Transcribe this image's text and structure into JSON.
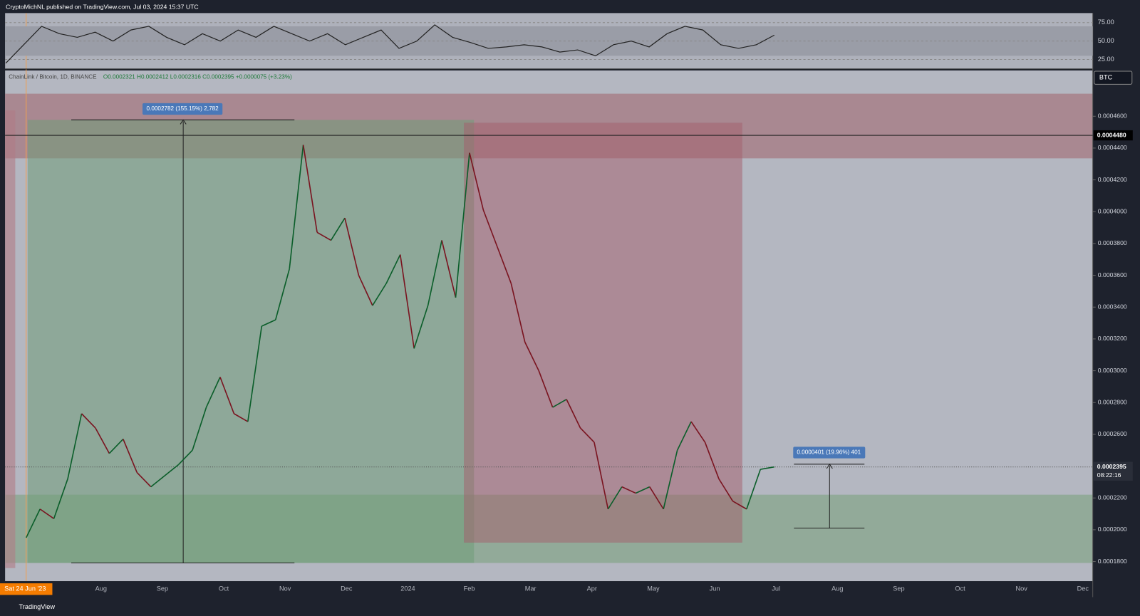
{
  "header": {
    "title": "CryptoMichNL published on TradingView.com, Jul 03, 2024 15:37 UTC"
  },
  "rsi": {
    "ylim": [
      12,
      88
    ],
    "yticks": [
      {
        "value": 75,
        "label": "75.00"
      },
      {
        "value": 50,
        "label": "50.00"
      },
      {
        "value": 25,
        "label": "25.00"
      }
    ],
    "band": [
      30,
      70
    ],
    "values": [
      20,
      45,
      70,
      60,
      55,
      62,
      50,
      65,
      70,
      55,
      45,
      60,
      50,
      65,
      55,
      70,
      60,
      50,
      60,
      45,
      55,
      65,
      40,
      50,
      72,
      55,
      48,
      40,
      42,
      45,
      42,
      35,
      38,
      30,
      45,
      50,
      42,
      60,
      70,
      65,
      45,
      40,
      45,
      58
    ]
  },
  "price": {
    "symbol": "ChainLink / Bitcoin, 1D, BINANCE",
    "ohlc": "O0.0002321 H0.0002412 L0.0002316 C0.0002395 +0.0000075 (+3.23%)",
    "currency": "BTC",
    "ylim": [
      0.0001677,
      0.0004888
    ],
    "yticks": [
      {
        "value": 0.00046,
        "label": "0.0004600"
      },
      {
        "value": 0.00044,
        "label": "0.0004400"
      },
      {
        "value": 0.00042,
        "label": "0.0004200"
      },
      {
        "value": 0.0004,
        "label": "0.0004000"
      },
      {
        "value": 0.00038,
        "label": "0.0003800"
      },
      {
        "value": 0.00036,
        "label": "0.0003600"
      },
      {
        "value": 0.00034,
        "label": "0.0003400"
      },
      {
        "value": 0.00032,
        "label": "0.0003200"
      },
      {
        "value": 0.0003,
        "label": "0.0003000"
      },
      {
        "value": 0.00028,
        "label": "0.0002800"
      },
      {
        "value": 0.00026,
        "label": "0.0002600"
      },
      {
        "value": 0.00022,
        "label": "0.0002200"
      },
      {
        "value": 0.0002,
        "label": "0.0002000"
      },
      {
        "value": 0.00018,
        "label": "0.0001800"
      }
    ],
    "level": {
      "value": 0.000448,
      "label": "0.0004480"
    },
    "last": {
      "value": 0.0002395,
      "label": "0.0002395"
    },
    "countdown": "08:22:16",
    "closes": [
      0.000195,
      0.000213,
      0.000207,
      0.000232,
      0.000273,
      0.000264,
      0.000248,
      0.000257,
      0.000236,
      0.000227,
      0.000234,
      0.000241,
      0.00025,
      0.000277,
      0.000296,
      0.000273,
      0.000268,
      0.000328,
      0.000332,
      0.000364,
      0.000442,
      0.000387,
      0.000382,
      0.000396,
      0.00036,
      0.000341,
      0.000355,
      0.000373,
      0.000314,
      0.000341,
      0.000382,
      0.000346,
      0.000437,
      0.000401,
      0.000378,
      0.000355,
      0.000318,
      0.0003,
      0.000277,
      0.000282,
      0.000264,
      0.000255,
      0.000213,
      0.000227,
      0.000223,
      0.000227,
      0.000213,
      0.00025,
      0.000268,
      0.000255,
      0.000232,
      0.000218,
      0.000213,
      0.000238,
      0.0002395
    ]
  },
  "measures": [
    "0.0002782 (155.15%) 2,782",
    "0.0000401 (19.96%) 401"
  ],
  "x_axis": {
    "start": "Sat 24 Jun '23",
    "labels": [
      "Aug",
      "Sep",
      "Oct",
      "Nov",
      "Dec",
      "2024",
      "Feb",
      "Mar",
      "Apr",
      "May",
      "Jun",
      "Jul",
      "Aug",
      "Sep",
      "Oct",
      "Nov",
      "Dec"
    ]
  },
  "footer": "TradingView"
}
